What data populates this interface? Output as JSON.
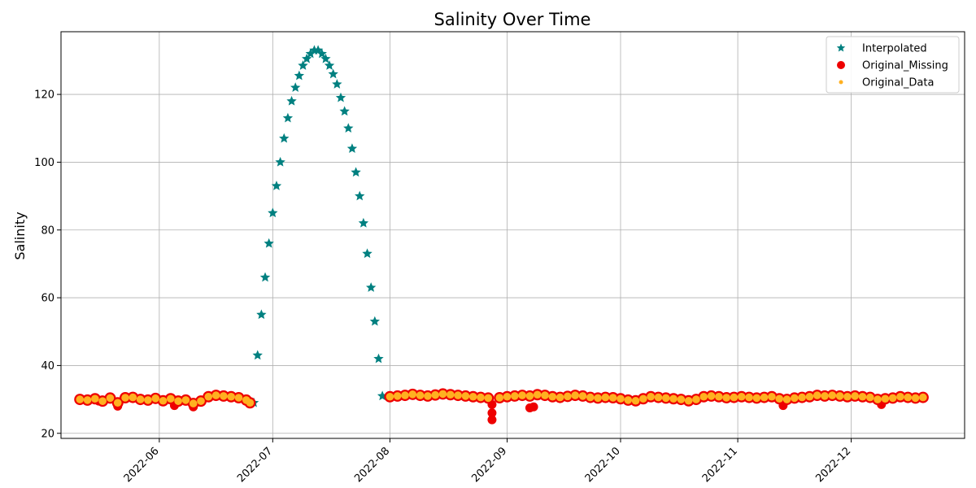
{
  "chart_data": {
    "type": "scatter",
    "title": "Salinity Over Time",
    "xlabel": "",
    "ylabel": "Salinity",
    "x_type": "date",
    "xlim": [
      "2022-05-06",
      "2022-12-31"
    ],
    "ylim": [
      18.5,
      138.5
    ],
    "y_ticks": [
      20,
      40,
      60,
      80,
      100,
      120
    ],
    "x_ticks": [
      "2022-06",
      "2022-07",
      "2022-08",
      "2022-09",
      "2022-10",
      "2022-11",
      "2022-12"
    ],
    "x_tick_dates": [
      "2022-06-01",
      "2022-07-01",
      "2022-08-01",
      "2022-09-01",
      "2022-10-01",
      "2022-11-01",
      "2022-12-01"
    ],
    "grid": true,
    "legend_position": "top-right",
    "colors": {
      "interpolated": "#008080",
      "original_missing": "#ee0000",
      "original_data": "#ffb020"
    },
    "series": [
      {
        "name": "Interpolated",
        "marker": "star",
        "color": "#008080",
        "points": [
          [
            "2022-06-26",
            29.0
          ],
          [
            "2022-06-27",
            43.0
          ],
          [
            "2022-06-28",
            55.0
          ],
          [
            "2022-06-29",
            66.0
          ],
          [
            "2022-06-30",
            76.0
          ],
          [
            "2022-07-01",
            85.0
          ],
          [
            "2022-07-02",
            93.0
          ],
          [
            "2022-07-03",
            100.0
          ],
          [
            "2022-07-04",
            107.0
          ],
          [
            "2022-07-05",
            113.0
          ],
          [
            "2022-07-06",
            118.0
          ],
          [
            "2022-07-07",
            122.0
          ],
          [
            "2022-07-08",
            125.5
          ],
          [
            "2022-07-09",
            128.5
          ],
          [
            "2022-07-10",
            130.5
          ],
          [
            "2022-07-11",
            132.0
          ],
          [
            "2022-07-12",
            133.0
          ],
          [
            "2022-07-13",
            133.0
          ],
          [
            "2022-07-14",
            132.0
          ],
          [
            "2022-07-15",
            130.5
          ],
          [
            "2022-07-16",
            128.5
          ],
          [
            "2022-07-17",
            126.0
          ],
          [
            "2022-07-18",
            123.0
          ],
          [
            "2022-07-19",
            119.0
          ],
          [
            "2022-07-20",
            115.0
          ],
          [
            "2022-07-21",
            110.0
          ],
          [
            "2022-07-22",
            104.0
          ],
          [
            "2022-07-23",
            97.0
          ],
          [
            "2022-07-24",
            90.0
          ],
          [
            "2022-07-25",
            82.0
          ],
          [
            "2022-07-26",
            73.0
          ],
          [
            "2022-07-27",
            63.0
          ],
          [
            "2022-07-28",
            53.0
          ],
          [
            "2022-07-29",
            42.0
          ],
          [
            "2022-07-30",
            31.0
          ]
        ]
      },
      {
        "name": "Original_Missing",
        "marker": "circle",
        "color": "#ee0000",
        "points": [
          [
            "2022-05-16",
            29.5
          ],
          [
            "2022-05-21",
            28.0
          ],
          [
            "2022-06-05",
            28.2
          ],
          [
            "2022-06-10",
            27.8
          ],
          [
            "2022-08-28",
            24.0
          ],
          [
            "2022-08-28",
            26.0
          ],
          [
            "2022-08-28",
            28.5
          ],
          [
            "2022-09-07",
            27.5
          ],
          [
            "2022-09-08",
            27.8
          ],
          [
            "2022-11-13",
            28.2
          ],
          [
            "2022-12-09",
            28.5
          ]
        ]
      },
      {
        "name": "Original_Data",
        "marker": "dot",
        "color": "#ffb020",
        "points": [
          [
            "2022-05-11",
            30.0
          ],
          [
            "2022-05-13",
            29.8
          ],
          [
            "2022-05-15",
            30.2
          ],
          [
            "2022-05-17",
            29.5
          ],
          [
            "2022-05-19",
            30.4
          ],
          [
            "2022-05-21",
            29.0
          ],
          [
            "2022-05-23",
            30.5
          ],
          [
            "2022-05-25",
            30.6
          ],
          [
            "2022-05-27",
            30.0
          ],
          [
            "2022-05-29",
            29.8
          ],
          [
            "2022-05-31",
            30.3
          ],
          [
            "2022-06-02",
            29.6
          ],
          [
            "2022-06-04",
            30.2
          ],
          [
            "2022-06-06",
            29.5
          ],
          [
            "2022-06-08",
            29.8
          ],
          [
            "2022-06-10",
            28.8
          ],
          [
            "2022-06-12",
            29.5
          ],
          [
            "2022-06-14",
            30.8
          ],
          [
            "2022-06-16",
            31.2
          ],
          [
            "2022-06-18",
            31.0
          ],
          [
            "2022-06-20",
            30.8
          ],
          [
            "2022-06-22",
            30.5
          ],
          [
            "2022-06-24",
            29.8
          ],
          [
            "2022-06-25",
            29.0
          ],
          [
            "2022-08-01",
            30.8
          ],
          [
            "2022-08-03",
            31.0
          ],
          [
            "2022-08-05",
            31.2
          ],
          [
            "2022-08-07",
            31.5
          ],
          [
            "2022-08-09",
            31.2
          ],
          [
            "2022-08-11",
            31.0
          ],
          [
            "2022-08-13",
            31.3
          ],
          [
            "2022-08-15",
            31.6
          ],
          [
            "2022-08-17",
            31.4
          ],
          [
            "2022-08-19",
            31.2
          ],
          [
            "2022-08-21",
            31.0
          ],
          [
            "2022-08-23",
            30.8
          ],
          [
            "2022-08-25",
            30.6
          ],
          [
            "2022-08-27",
            30.4
          ],
          [
            "2022-08-30",
            30.5
          ],
          [
            "2022-09-01",
            30.8
          ],
          [
            "2022-09-03",
            31.0
          ],
          [
            "2022-09-05",
            31.2
          ],
          [
            "2022-09-07",
            31.0
          ],
          [
            "2022-09-09",
            31.4
          ],
          [
            "2022-09-11",
            31.2
          ],
          [
            "2022-09-13",
            30.8
          ],
          [
            "2022-09-15",
            30.6
          ],
          [
            "2022-09-17",
            30.9
          ],
          [
            "2022-09-19",
            31.2
          ],
          [
            "2022-09-21",
            31.0
          ],
          [
            "2022-09-23",
            30.6
          ],
          [
            "2022-09-25",
            30.4
          ],
          [
            "2022-09-27",
            30.6
          ],
          [
            "2022-09-29",
            30.5
          ],
          [
            "2022-10-01",
            30.2
          ],
          [
            "2022-10-03",
            29.8
          ],
          [
            "2022-10-05",
            29.6
          ],
          [
            "2022-10-07",
            30.2
          ],
          [
            "2022-10-09",
            30.8
          ],
          [
            "2022-10-11",
            30.6
          ],
          [
            "2022-10-13",
            30.4
          ],
          [
            "2022-10-15",
            30.2
          ],
          [
            "2022-10-17",
            30.0
          ],
          [
            "2022-10-19",
            29.6
          ],
          [
            "2022-10-21",
            30.0
          ],
          [
            "2022-10-23",
            30.8
          ],
          [
            "2022-10-25",
            31.0
          ],
          [
            "2022-10-27",
            30.8
          ],
          [
            "2022-10-29",
            30.5
          ],
          [
            "2022-10-31",
            30.6
          ],
          [
            "2022-11-02",
            30.8
          ],
          [
            "2022-11-04",
            30.6
          ],
          [
            "2022-11-06",
            30.4
          ],
          [
            "2022-11-08",
            30.6
          ],
          [
            "2022-11-10",
            30.8
          ],
          [
            "2022-11-12",
            30.2
          ],
          [
            "2022-11-14",
            30.0
          ],
          [
            "2022-11-16",
            30.4
          ],
          [
            "2022-11-18",
            30.6
          ],
          [
            "2022-11-20",
            30.8
          ],
          [
            "2022-11-22",
            31.2
          ],
          [
            "2022-11-24",
            31.0
          ],
          [
            "2022-11-26",
            31.2
          ],
          [
            "2022-11-28",
            31.0
          ],
          [
            "2022-11-30",
            30.8
          ],
          [
            "2022-12-02",
            31.0
          ],
          [
            "2022-12-04",
            30.8
          ],
          [
            "2022-12-06",
            30.6
          ],
          [
            "2022-12-08",
            30.0
          ],
          [
            "2022-12-10",
            30.2
          ],
          [
            "2022-12-12",
            30.4
          ],
          [
            "2022-12-14",
            30.8
          ],
          [
            "2022-12-16",
            30.6
          ],
          [
            "2022-12-18",
            30.4
          ],
          [
            "2022-12-20",
            30.6
          ]
        ]
      }
    ]
  }
}
